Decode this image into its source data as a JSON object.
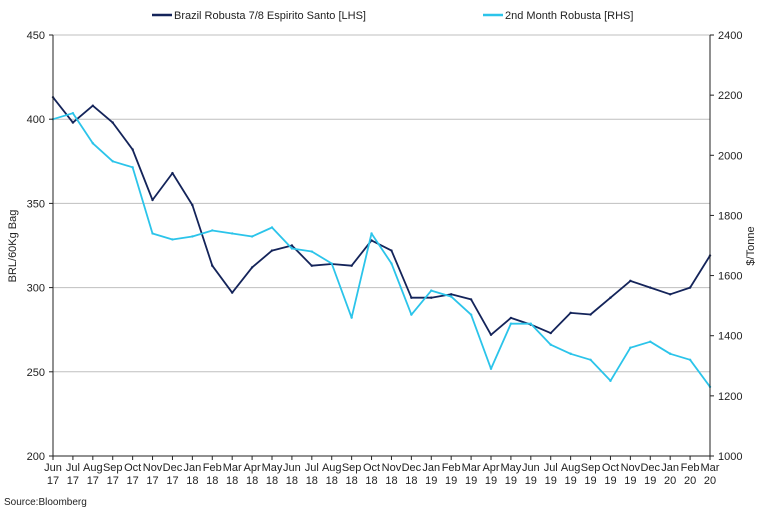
{
  "chart_data": {
    "type": "line",
    "title": "",
    "source": "Source:Bloomberg",
    "ylabel_left": "BRL/60Kg Bag",
    "ylabel_right": "$/Tonne",
    "ylim_left": [
      200,
      450
    ],
    "ylim_right": [
      1000,
      2400
    ],
    "yticks_left": [
      "200",
      "250",
      "300",
      "350",
      "400",
      "450"
    ],
    "yticks_right": [
      "1000",
      "1200",
      "1400",
      "1600",
      "1800",
      "2000",
      "2200",
      "2400"
    ],
    "grid": "horizontal",
    "legend_position": "top",
    "x_ticks": [
      {
        "month": "Jun",
        "year": "17"
      },
      {
        "month": "Jul",
        "year": "17"
      },
      {
        "month": "Aug",
        "year": "17"
      },
      {
        "month": "Sep",
        "year": "17"
      },
      {
        "month": "Oct",
        "year": "17"
      },
      {
        "month": "Nov",
        "year": "17"
      },
      {
        "month": "Dec",
        "year": "17"
      },
      {
        "month": "Jan",
        "year": "18"
      },
      {
        "month": "Feb",
        "year": "18"
      },
      {
        "month": "Mar",
        "year": "18"
      },
      {
        "month": "Apr",
        "year": "18"
      },
      {
        "month": "May",
        "year": "18"
      },
      {
        "month": "Jun",
        "year": "18"
      },
      {
        "month": "Jul",
        "year": "18"
      },
      {
        "month": "Aug",
        "year": "18"
      },
      {
        "month": "Sep",
        "year": "18"
      },
      {
        "month": "Oct",
        "year": "18"
      },
      {
        "month": "Nov",
        "year": "18"
      },
      {
        "month": "Dec",
        "year": "18"
      },
      {
        "month": "Jan",
        "year": "19"
      },
      {
        "month": "Feb",
        "year": "19"
      },
      {
        "month": "Mar",
        "year": "19"
      },
      {
        "month": "Apr",
        "year": "19"
      },
      {
        "month": "May",
        "year": "19"
      },
      {
        "month": "Jun",
        "year": "19"
      },
      {
        "month": "Jul",
        "year": "19"
      },
      {
        "month": "Aug",
        "year": "19"
      },
      {
        "month": "Sep",
        "year": "19"
      },
      {
        "month": "Oct",
        "year": "19"
      },
      {
        "month": "Nov",
        "year": "19"
      },
      {
        "month": "Dec",
        "year": "19"
      },
      {
        "month": "Jan",
        "year": "20"
      },
      {
        "month": "Feb",
        "year": "20"
      },
      {
        "month": "Mar",
        "year": "20"
      }
    ],
    "x": [
      "Jun 17",
      "Jul 17",
      "Aug 17",
      "Sep 17",
      "Oct 17",
      "Nov 17",
      "Dec 17",
      "Jan 18",
      "Feb 18",
      "Mar 18",
      "Apr 18",
      "May 18",
      "Jun 18",
      "Jul 18",
      "Aug 18",
      "Sep 18",
      "Oct 18",
      "Nov 18",
      "Dec 18",
      "Jan 19",
      "Feb 19",
      "Mar 19",
      "Apr 19",
      "May 19",
      "Jun 19",
      "Jul 19",
      "Aug 19",
      "Sep 19",
      "Oct 19",
      "Nov 19",
      "Dec 19",
      "Jan 20",
      "Feb 20",
      "Mar 20"
    ],
    "series": [
      {
        "name": "Brazil Robusta 7/8 Espirito Santo [LHS]",
        "axis": "left",
        "color": "#14245a",
        "values": [
          413,
          398,
          408,
          398,
          382,
          352,
          368,
          349,
          313,
          297,
          312,
          322,
          325,
          313,
          314,
          313,
          328,
          322,
          294,
          294,
          296,
          293,
          272,
          282,
          278,
          273,
          285,
          284,
          294,
          304,
          300,
          296,
          300,
          319
        ]
      },
      {
        "name": "2nd Month Robusta [RHS]",
        "axis": "right",
        "color": "#2bc4ea",
        "values": [
          2120,
          2140,
          2040,
          1980,
          1960,
          1740,
          1720,
          1730,
          1750,
          1740,
          1730,
          1760,
          1690,
          1680,
          1640,
          1460,
          1740,
          1640,
          1470,
          1550,
          1530,
          1470,
          1290,
          1440,
          1440,
          1370,
          1340,
          1320,
          1250,
          1360,
          1380,
          1340,
          1320,
          1230
        ]
      }
    ]
  }
}
